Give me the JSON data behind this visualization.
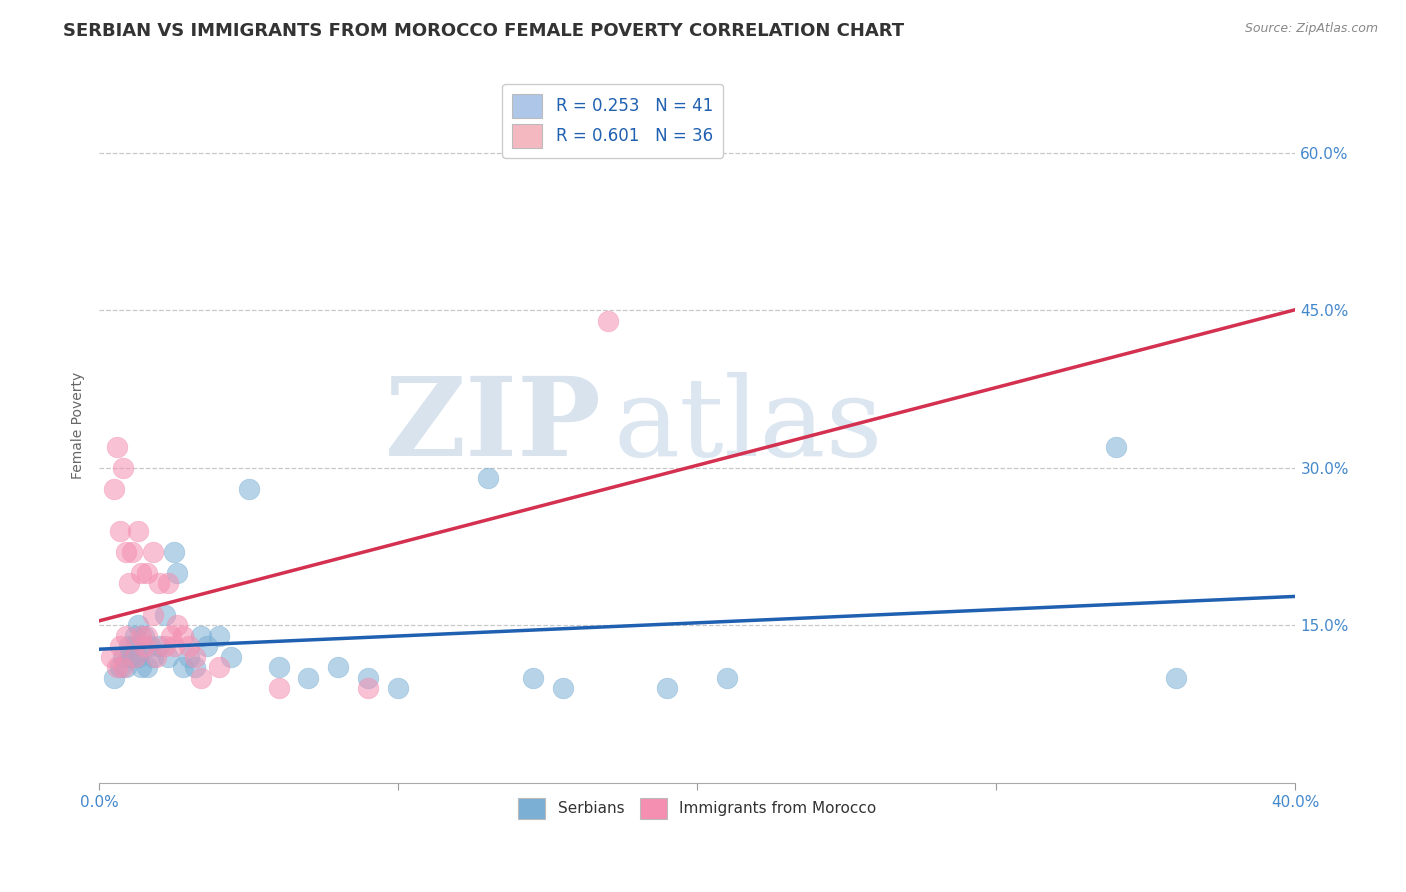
{
  "title": "SERBIAN VS IMMIGRANTS FROM MOROCCO FEMALE POVERTY CORRELATION CHART",
  "source": "Source: ZipAtlas.com",
  "ylabel": "Female Poverty",
  "watermark_zip": "ZIP",
  "watermark_atlas": "atlas",
  "xlim": [
    0.0,
    0.4
  ],
  "ylim": [
    0.0,
    0.68
  ],
  "xticks": [
    0.0,
    0.1,
    0.2,
    0.3,
    0.4
  ],
  "xtick_labels": [
    "0.0%",
    "",
    "",
    "",
    "40.0%"
  ],
  "yticks": [
    0.15,
    0.3,
    0.45,
    0.6
  ],
  "ytick_labels": [
    "15.0%",
    "30.0%",
    "45.0%",
    "60.0%"
  ],
  "legend_entries": [
    {
      "label": "R = 0.253   N = 41",
      "color": "#aec6e8"
    },
    {
      "label": "R = 0.601   N = 36",
      "color": "#f4b8c1"
    }
  ],
  "legend_bottom": [
    "Serbians",
    "Immigrants from Morocco"
  ],
  "serbian_color": "#7bafd4",
  "moroccan_color": "#f48fb1",
  "trend_serbian_color": "#2060b0",
  "trend_moroccan_color": "#d43050",
  "grid_color": "#c8c8c8",
  "background_color": "#ffffff",
  "serbian_x": [
    0.005,
    0.007,
    0.008,
    0.009,
    0.01,
    0.01,
    0.011,
    0.012,
    0.012,
    0.013,
    0.013,
    0.014,
    0.015,
    0.016,
    0.017,
    0.018,
    0.02,
    0.022,
    0.023,
    0.025,
    0.026,
    0.028,
    0.03,
    0.032,
    0.034,
    0.036,
    0.04,
    0.044,
    0.05,
    0.06,
    0.07,
    0.08,
    0.09,
    0.1,
    0.13,
    0.145,
    0.155,
    0.19,
    0.21,
    0.34,
    0.36
  ],
  "serbian_y": [
    0.1,
    0.11,
    0.12,
    0.11,
    0.13,
    0.12,
    0.12,
    0.14,
    0.13,
    0.12,
    0.15,
    0.11,
    0.14,
    0.11,
    0.13,
    0.12,
    0.13,
    0.16,
    0.12,
    0.22,
    0.2,
    0.11,
    0.12,
    0.11,
    0.14,
    0.13,
    0.14,
    0.12,
    0.28,
    0.11,
    0.1,
    0.11,
    0.1,
    0.09,
    0.29,
    0.1,
    0.09,
    0.09,
    0.1,
    0.32,
    0.1
  ],
  "moroccan_x": [
    0.004,
    0.005,
    0.006,
    0.006,
    0.007,
    0.007,
    0.008,
    0.008,
    0.009,
    0.009,
    0.01,
    0.011,
    0.012,
    0.013,
    0.014,
    0.014,
    0.015,
    0.016,
    0.016,
    0.018,
    0.018,
    0.019,
    0.02,
    0.022,
    0.023,
    0.024,
    0.025,
    0.026,
    0.028,
    0.03,
    0.032,
    0.034,
    0.04,
    0.06,
    0.09,
    0.17
  ],
  "moroccan_y": [
    0.12,
    0.28,
    0.32,
    0.11,
    0.24,
    0.13,
    0.3,
    0.11,
    0.22,
    0.14,
    0.19,
    0.22,
    0.12,
    0.24,
    0.14,
    0.2,
    0.13,
    0.2,
    0.14,
    0.22,
    0.16,
    0.12,
    0.19,
    0.13,
    0.19,
    0.14,
    0.13,
    0.15,
    0.14,
    0.13,
    0.12,
    0.1,
    0.11,
    0.09,
    0.09,
    0.44
  ],
  "title_fontsize": 13,
  "axis_label_fontsize": 10,
  "tick_fontsize": 11,
  "legend_fontsize": 12
}
